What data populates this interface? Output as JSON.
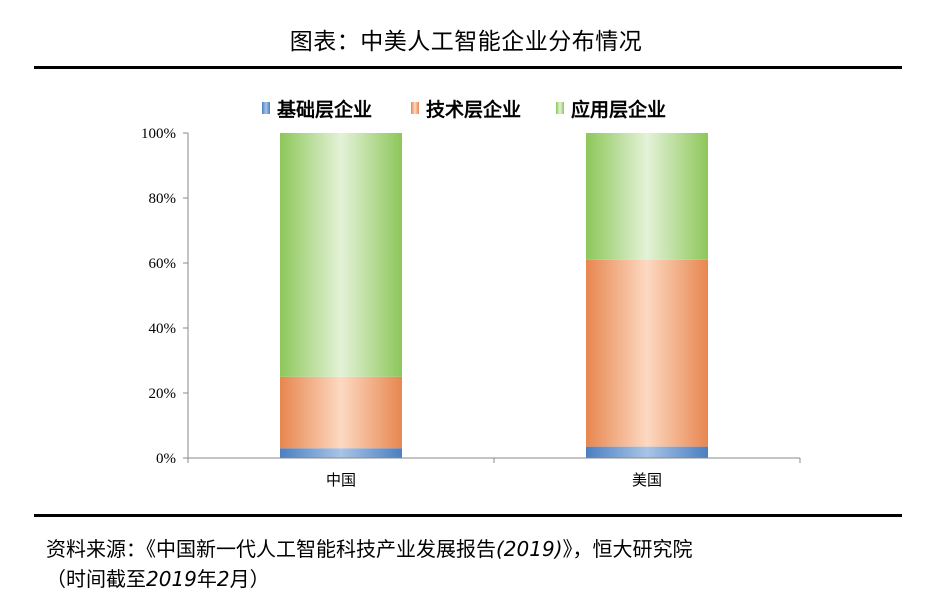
{
  "header": {
    "title": "图表：中美人工智能企业分布情况"
  },
  "chart_data": {
    "type": "bar",
    "stacked": true,
    "categories": [
      "中国",
      "美国"
    ],
    "series": [
      {
        "name": "基础层企业",
        "values": [
          3,
          3.5
        ],
        "color": "#4a7fc1"
      },
      {
        "name": "技术层企业",
        "values": [
          22,
          57.5
        ],
        "color": "#e8864f"
      },
      {
        "name": "应用层企业",
        "values": [
          75,
          39
        ],
        "color": "#8dc75a"
      }
    ],
    "ylim": [
      0,
      100
    ],
    "yticks": [
      "0%",
      "20%",
      "40%",
      "60%",
      "80%",
      "100%"
    ],
    "legend_position": "top",
    "grid": false
  },
  "footer": {
    "source_prefix": "资料来源：《中国新一代人工智能科技产业发展报告",
    "source_year": "(2019)",
    "source_mid": "》，恒大研究院",
    "source_paren_open": "（时间截至",
    "source_year2": "2019",
    "source_mid2": "年",
    "source_month": "2",
    "source_paren_close": "月）"
  }
}
